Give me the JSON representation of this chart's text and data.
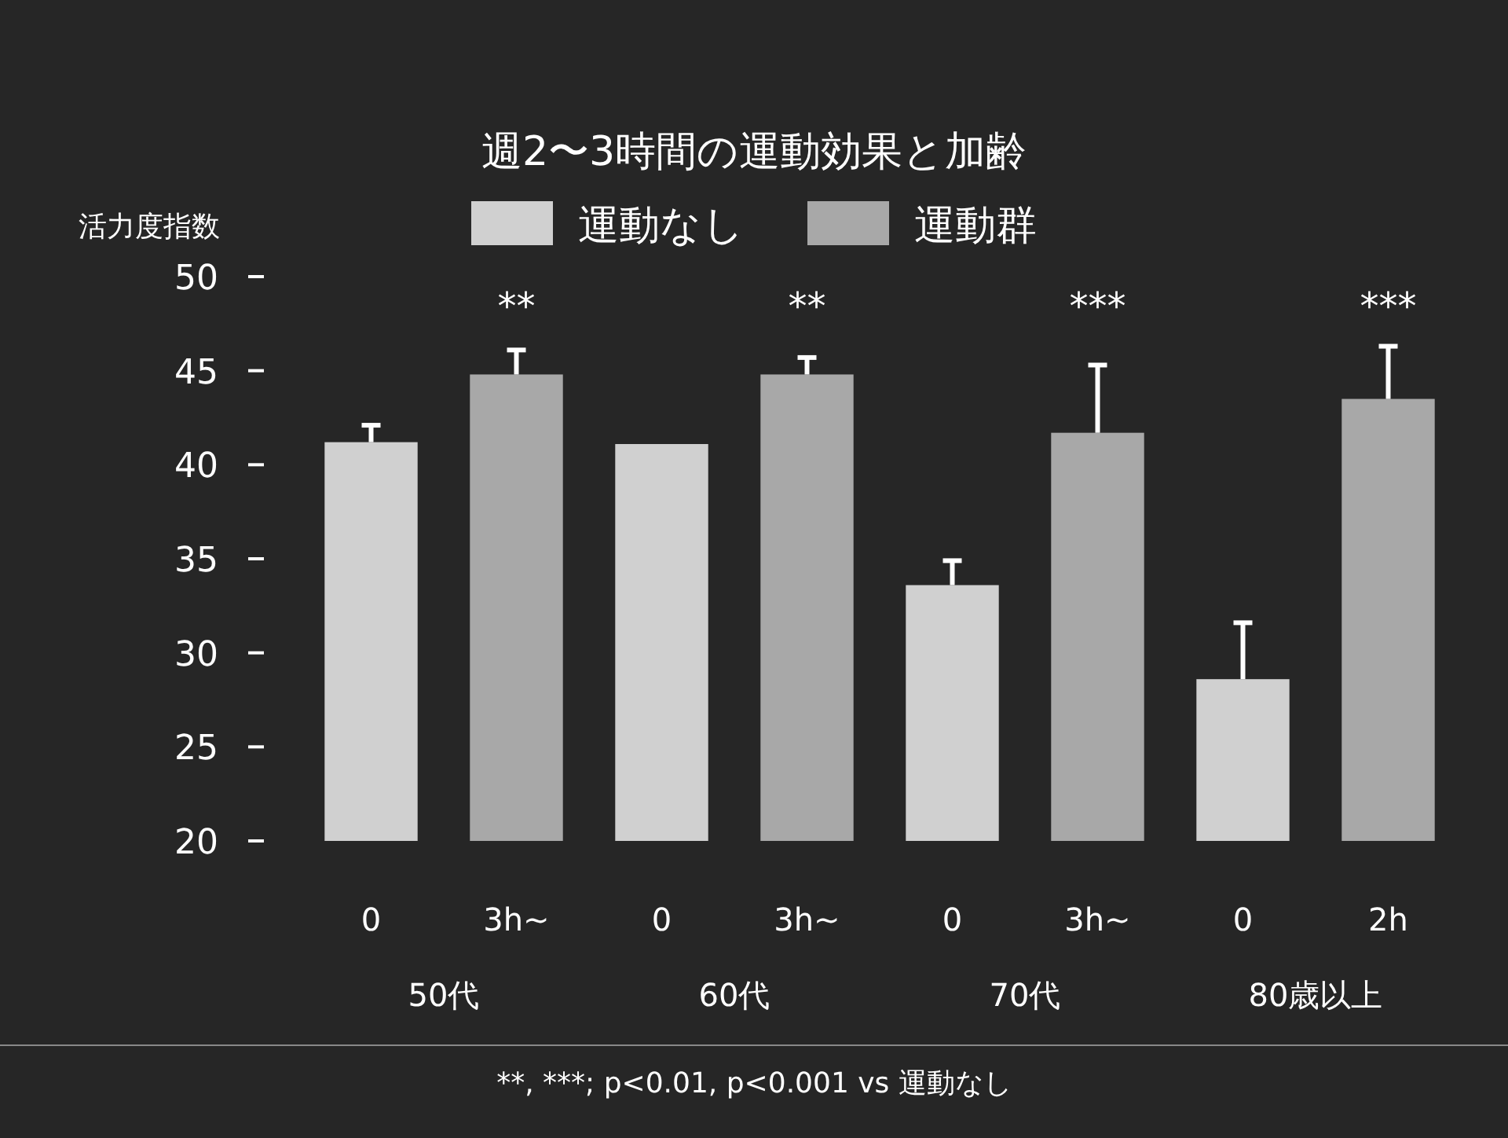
{
  "chart_data": {
    "type": "bar",
    "title": "週2〜3時間の運動効果と加齢",
    "ylabel": "活力度指数",
    "categories": [
      "0",
      "3h~",
      "0",
      "3h~",
      "0",
      "3h~",
      "0",
      "2h"
    ],
    "series": [
      {
        "name": "運動なし",
        "color": "#d0d0d0",
        "values": [
          41.2,
          null,
          41.1,
          null,
          33.6,
          null,
          28.6,
          null
        ],
        "errors": [
          0.9,
          null,
          null,
          null,
          1.3,
          null,
          3.0,
          null
        ]
      },
      {
        "name": "運動群",
        "color": "#a8a8a8",
        "values": [
          null,
          44.8,
          null,
          44.8,
          null,
          41.7,
          null,
          43.5
        ],
        "errors": [
          null,
          1.3,
          null,
          0.9,
          null,
          3.6,
          null,
          2.8
        ]
      }
    ],
    "ylim": [
      20,
      50
    ],
    "yticks": [
      20,
      25,
      30,
      35,
      40,
      45,
      50
    ],
    "legend": "top",
    "annotations": [
      "**",
      "**",
      "***",
      "***",
      "50代",
      "60代",
      "70代",
      "80歳以上",
      "**, ***; p<0.01, p<0.001 vs 運動なし"
    ]
  }
}
